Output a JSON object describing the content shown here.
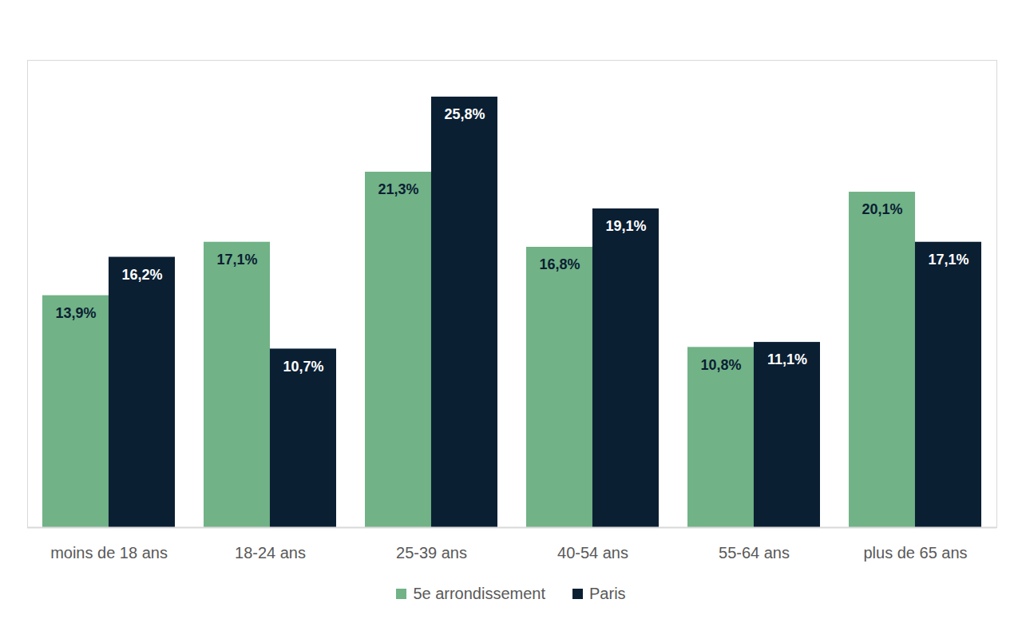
{
  "chart_data": {
    "type": "bar",
    "categories": [
      "moins de 18 ans",
      "18-24 ans",
      "25-39 ans",
      "40-54 ans",
      "55-64 ans",
      "plus de 65 ans"
    ],
    "series": [
      {
        "name": "5e arrondissement",
        "color": "#71b287",
        "values": [
          13.9,
          17.1,
          21.3,
          16.8,
          10.8,
          20.1
        ],
        "value_labels": [
          "13,9%",
          "17,1%",
          "21,3%",
          "16,8%",
          "10,8%",
          "20,1%"
        ]
      },
      {
        "name": "Paris",
        "color": "#0b1f33",
        "values": [
          16.2,
          10.7,
          25.8,
          19.1,
          11.1,
          17.1
        ],
        "value_labels": [
          "16,2%",
          "10,7%",
          "25,8%",
          "19,1%",
          "11,1%",
          "17,1%"
        ]
      }
    ],
    "ylim": [
      0,
      28
    ],
    "yticks": [
      0
    ],
    "tick_labels": "x",
    "data_labels": true,
    "legend": "bottom",
    "grid": false
  }
}
